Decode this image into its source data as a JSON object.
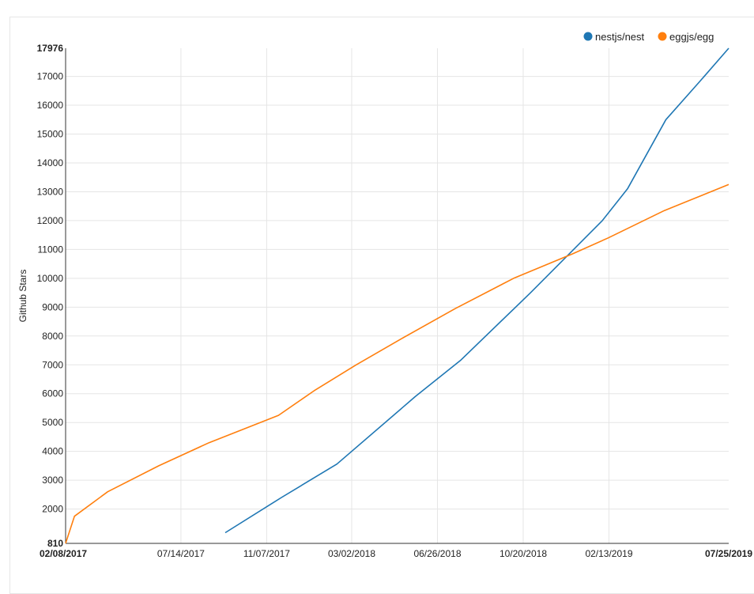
{
  "chart_data": {
    "type": "line",
    "ylabel": "Github Stars",
    "ylim": [
      810,
      17976
    ],
    "y_ticks": [
      "810",
      "2000",
      "3000",
      "4000",
      "5000",
      "6000",
      "7000",
      "8000",
      "9000",
      "10000",
      "11000",
      "12000",
      "13000",
      "14000",
      "15000",
      "16000",
      "17000",
      "17976"
    ],
    "x_ticks": [
      "02/08/2017",
      "07/14/2017",
      "11/07/2017",
      "03/02/2018",
      "06/26/2018",
      "10/20/2018",
      "02/13/2019",
      "07/25/2019"
    ],
    "x_tick_days": [
      0,
      156,
      272,
      387,
      503,
      619,
      735,
      897
    ],
    "grid": true,
    "legend": "top-right",
    "colors": {
      "nestjs/nest": "#1f77b4",
      "eggjs/egg": "#ff7f0e"
    },
    "series": [
      {
        "name": "nestjs/nest",
        "points": [
          [
            216,
            1180
          ],
          [
            292,
            2400
          ],
          [
            367,
            3560
          ],
          [
            473,
            5900
          ],
          [
            534,
            7150
          ],
          [
            629,
            9500
          ],
          [
            726,
            12000
          ],
          [
            760,
            13100
          ],
          [
            812,
            15500
          ],
          [
            857,
            16800
          ],
          [
            897,
            17976
          ]
        ]
      },
      {
        "name": "eggjs/egg",
        "points": [
          [
            0,
            810
          ],
          [
            12,
            1750
          ],
          [
            57,
            2600
          ],
          [
            126,
            3500
          ],
          [
            194,
            4300
          ],
          [
            288,
            5250
          ],
          [
            336,
            6100
          ],
          [
            393,
            7000
          ],
          [
            454,
            7900
          ],
          [
            527,
            8950
          ],
          [
            606,
            10000
          ],
          [
            686,
            10850
          ],
          [
            734,
            11400
          ],
          [
            810,
            12350
          ],
          [
            897,
            13250
          ]
        ]
      }
    ]
  }
}
